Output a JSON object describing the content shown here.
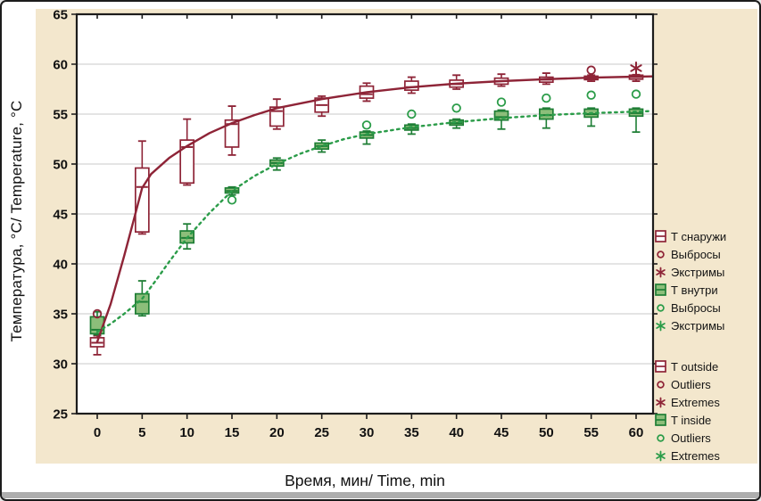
{
  "window": {
    "panel_bg": "#f3e7cd",
    "plot_bg": "#ffffff",
    "frame_color": "#1c1c1c",
    "grid_color": "#c9c9c9",
    "bottom_bar_color": "#aeaeae"
  },
  "axes": {
    "y_label": "Температура, °C/ Temperature, °C",
    "x_label": "Время, мин/ Time, min",
    "y_ticks": [
      65,
      60,
      55,
      50,
      45,
      40,
      35,
      30,
      25
    ],
    "x_ticks": [
      0,
      5,
      10,
      15,
      20,
      25,
      30,
      35,
      40,
      45,
      50,
      55,
      60
    ],
    "y_range": [
      25,
      65
    ],
    "x_range": [
      0,
      60
    ],
    "grid_values": [
      30,
      35,
      40,
      45,
      50,
      55,
      60
    ]
  },
  "legend": {
    "groups": [
      {
        "items": [
          {
            "key": "t-snaruzhi",
            "icon": "box-open-icon",
            "series": "outside",
            "label": "Т снаружи"
          },
          {
            "key": "vybrosy-outside",
            "icon": "circle-icon",
            "series": "outside",
            "label": "Выбросы"
          },
          {
            "key": "ekstrimy-outside",
            "icon": "asterisk-icon",
            "series": "outside",
            "label": "Экстримы"
          },
          {
            "key": "t-vnutri",
            "icon": "box-filled-icon",
            "series": "inside",
            "label": "Т внутри"
          },
          {
            "key": "vybrosy-inside",
            "icon": "circle-icon",
            "series": "inside",
            "label": "Выбросы"
          },
          {
            "key": "ekstrimy-inside",
            "icon": "asterisk-icon",
            "series": "inside",
            "label": "Экстримы"
          }
        ]
      },
      {
        "items": [
          {
            "key": "t-outside",
            "icon": "box-open-icon",
            "series": "outside",
            "label": "T outside"
          },
          {
            "key": "outliers-outside",
            "icon": "circle-icon",
            "series": "outside",
            "label": "Outliers"
          },
          {
            "key": "extremes-outside",
            "icon": "asterisk-icon",
            "series": "outside",
            "label": "Extremes"
          },
          {
            "key": "t-inside",
            "icon": "box-filled-icon",
            "series": "inside",
            "label": "T inside"
          },
          {
            "key": "outliers-inside",
            "icon": "circle-icon",
            "series": "inside",
            "label": "Outliers"
          },
          {
            "key": "extremes-inside",
            "icon": "asterisk-icon",
            "series": "inside",
            "label": "Extremes"
          }
        ]
      }
    ]
  },
  "chart_data": {
    "type": "box",
    "title": "",
    "xlabel": "Время, мин/ Time, min",
    "ylabel": "Температура, °C/ Temperature, °C",
    "xlim": [
      0,
      60
    ],
    "ylim": [
      25,
      65
    ],
    "grid": "horizontal",
    "legend_position": "right",
    "categories": [
      0,
      5,
      10,
      15,
      20,
      25,
      30,
      35,
      40,
      45,
      50,
      55,
      60
    ],
    "series": [
      {
        "key": "outside",
        "name_ru": "Т снаружи",
        "name_en": "T outside",
        "color": "#8e2437",
        "box_fill": "#ffffff",
        "line_style": "solid",
        "boxes": [
          {
            "x": 0,
            "lo": 30.9,
            "q1": 31.7,
            "med": 32.1,
            "q3": 32.6,
            "hi": 32.8
          },
          {
            "x": 5,
            "lo": 43.0,
            "q1": 43.2,
            "med": 47.7,
            "q3": 49.6,
            "hi": 52.3
          },
          {
            "x": 10,
            "lo": 47.9,
            "q1": 48.1,
            "med": 51.7,
            "q3": 52.4,
            "hi": 54.5
          },
          {
            "x": 15,
            "lo": 50.9,
            "q1": 51.7,
            "med": 54.0,
            "q3": 54.4,
            "hi": 55.8
          },
          {
            "x": 20,
            "lo": 53.5,
            "q1": 53.8,
            "med": 55.3,
            "q3": 55.7,
            "hi": 56.5
          },
          {
            "x": 25,
            "lo": 54.8,
            "q1": 55.2,
            "med": 55.9,
            "q3": 56.6,
            "hi": 56.8
          },
          {
            "x": 30,
            "lo": 56.3,
            "q1": 56.6,
            "med": 57.0,
            "q3": 57.8,
            "hi": 58.1
          },
          {
            "x": 35,
            "lo": 57.1,
            "q1": 57.4,
            "med": 57.7,
            "q3": 58.3,
            "hi": 58.7
          },
          {
            "x": 40,
            "lo": 57.5,
            "q1": 57.7,
            "med": 58.0,
            "q3": 58.4,
            "hi": 58.9
          },
          {
            "x": 45,
            "lo": 57.8,
            "q1": 58.0,
            "med": 58.3,
            "q3": 58.6,
            "hi": 59.0
          },
          {
            "x": 50,
            "lo": 58.0,
            "q1": 58.2,
            "med": 58.45,
            "q3": 58.7,
            "hi": 59.1
          },
          {
            "x": 55,
            "lo": 58.3,
            "q1": 58.45,
            "med": 58.6,
            "q3": 58.8,
            "hi": 58.9
          },
          {
            "x": 60,
            "lo": 58.3,
            "q1": 58.5,
            "med": 58.7,
            "q3": 58.9,
            "hi": 58.95
          }
        ],
        "outliers": [
          [
            0,
            35.0
          ],
          [
            55,
            59.4
          ]
        ],
        "extremes": [
          [
            60,
            59.6
          ]
        ],
        "fit_line": [
          [
            0,
            32.2
          ],
          [
            1.5,
            36.0
          ],
          [
            3,
            40.8
          ],
          [
            4,
            44.2
          ],
          [
            5,
            47.6
          ],
          [
            6,
            49.0
          ],
          [
            8,
            50.6
          ],
          [
            10,
            51.8
          ],
          [
            12.5,
            53.1
          ],
          [
            15,
            54.1
          ],
          [
            17.5,
            54.9
          ],
          [
            20,
            55.6
          ],
          [
            25,
            56.5
          ],
          [
            30,
            57.2
          ],
          [
            35,
            57.7
          ],
          [
            40,
            58.05
          ],
          [
            45,
            58.3
          ],
          [
            50,
            58.5
          ],
          [
            55,
            58.65
          ],
          [
            60,
            58.75
          ],
          [
            61.8,
            58.78
          ]
        ]
      },
      {
        "key": "inside",
        "name_ru": "Т внутри",
        "name_en": "T inside",
        "color": "#2b9c49",
        "box_stroke": "#1e7e35",
        "box_fill": "#8cbe7a",
        "line_style": "dotted",
        "boxes": [
          {
            "x": 0,
            "lo": 32.9,
            "q1": 33.0,
            "med": 33.4,
            "q3": 34.7,
            "hi": 35.2
          },
          {
            "x": 5,
            "lo": 34.8,
            "q1": 35.0,
            "med": 36.2,
            "q3": 37.0,
            "hi": 38.3
          },
          {
            "x": 10,
            "lo": 41.5,
            "q1": 42.1,
            "med": 42.6,
            "q3": 43.3,
            "hi": 44.0
          },
          {
            "x": 15,
            "lo": 46.9,
            "q1": 47.1,
            "med": 47.3,
            "q3": 47.6,
            "hi": 47.7
          },
          {
            "x": 20,
            "lo": 49.4,
            "q1": 49.8,
            "med": 50.1,
            "q3": 50.4,
            "hi": 50.6
          },
          {
            "x": 25,
            "lo": 51.2,
            "q1": 51.5,
            "med": 51.8,
            "q3": 52.1,
            "hi": 52.4
          },
          {
            "x": 30,
            "lo": 52.0,
            "q1": 52.6,
            "med": 52.9,
            "q3": 53.2,
            "hi": 53.3
          },
          {
            "x": 35,
            "lo": 53.0,
            "q1": 53.4,
            "med": 53.6,
            "q3": 53.9,
            "hi": 54.0
          },
          {
            "x": 40,
            "lo": 53.6,
            "q1": 53.9,
            "med": 54.1,
            "q3": 54.4,
            "hi": 54.5
          },
          {
            "x": 45,
            "lo": 53.5,
            "q1": 54.4,
            "med": 54.7,
            "q3": 55.3,
            "hi": 55.4
          },
          {
            "x": 50,
            "lo": 53.6,
            "q1": 54.5,
            "med": 54.9,
            "q3": 55.5,
            "hi": 55.6
          },
          {
            "x": 55,
            "lo": 53.8,
            "q1": 54.7,
            "med": 55.0,
            "q3": 55.5,
            "hi": 55.6
          },
          {
            "x": 60,
            "lo": 53.2,
            "q1": 54.8,
            "med": 55.1,
            "q3": 55.5,
            "hi": 55.6
          }
        ],
        "outliers": [
          [
            15,
            46.4
          ],
          [
            30,
            53.9
          ],
          [
            35,
            55.0
          ],
          [
            40,
            55.6
          ],
          [
            45,
            56.2
          ],
          [
            50,
            56.6
          ],
          [
            55,
            56.9
          ],
          [
            60,
            57.0
          ]
        ],
        "extremes": [],
        "fit_line": [
          [
            0,
            33.2
          ],
          [
            1.5,
            34.0
          ],
          [
            3,
            35.0
          ],
          [
            5,
            36.5
          ],
          [
            6.5,
            38.3
          ],
          [
            8,
            40.2
          ],
          [
            10,
            42.6
          ],
          [
            12.5,
            45.1
          ],
          [
            15,
            47.3
          ],
          [
            17.5,
            48.8
          ],
          [
            20,
            50.0
          ],
          [
            22.5,
            51.0
          ],
          [
            25,
            51.8
          ],
          [
            27.5,
            52.5
          ],
          [
            30,
            53.0
          ],
          [
            35,
            53.7
          ],
          [
            40,
            54.2
          ],
          [
            45,
            54.6
          ],
          [
            50,
            54.9
          ],
          [
            55,
            55.1
          ],
          [
            60,
            55.25
          ],
          [
            61.8,
            55.3
          ]
        ]
      }
    ]
  }
}
